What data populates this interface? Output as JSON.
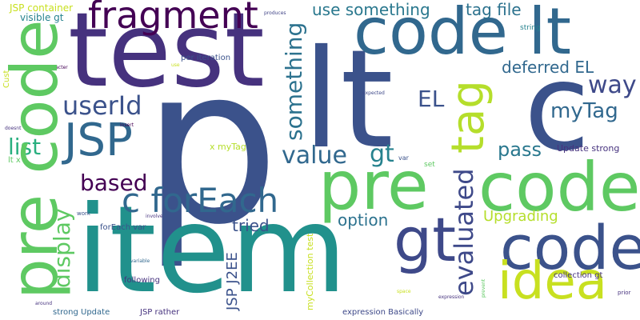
{
  "words": [
    {
      "text": "p",
      "color": "#3b528b"
    },
    {
      "text": "item",
      "color": "#21918c"
    },
    {
      "text": "test",
      "color": "#46327e"
    },
    {
      "text": "lt",
      "color": "#3b528b"
    },
    {
      "text": "c",
      "color": "#3b528b"
    },
    {
      "text": "code lt",
      "color": "#31688e"
    },
    {
      "text": "pre code",
      "color": "#5ec962"
    },
    {
      "text": "code",
      "color": "#3b528b"
    },
    {
      "text": "code",
      "color": "#5ec962"
    },
    {
      "text": "pre",
      "color": "#3b528b"
    },
    {
      "text": "fragment",
      "color": "#440154"
    },
    {
      "text": "JSP",
      "color": "#31688e"
    },
    {
      "text": "tag",
      "color": "#b5de2b"
    },
    {
      "text": "idea",
      "color": "#c8e020"
    },
    {
      "text": "gt",
      "color": "#3e4989"
    },
    {
      "text": "c forEach",
      "color": "#31688e"
    },
    {
      "text": "code",
      "color": "#7ad151"
    },
    {
      "text": "userId",
      "color": "#3b528b"
    },
    {
      "text": "evaluated",
      "color": "#3e4989"
    },
    {
      "text": "value",
      "color": "#31688e"
    },
    {
      "text": "gt",
      "color": "#26828e"
    },
    {
      "text": "something",
      "color": "#2c728e"
    },
    {
      "text": "display",
      "color": "#5ec962"
    },
    {
      "text": "based",
      "color": "#440154"
    },
    {
      "text": "list",
      "color": "#29af7f"
    },
    {
      "text": "use something",
      "color": "#2a788e"
    },
    {
      "text": "tag file",
      "color": "#2c728e"
    },
    {
      "text": "way",
      "color": "#3e4989"
    },
    {
      "text": "EL",
      "color": "#3b528b"
    },
    {
      "text": "myTag",
      "color": "#31688e"
    },
    {
      "text": "deferred EL",
      "color": "#31688e"
    },
    {
      "text": "pass",
      "color": "#2a788e"
    },
    {
      "text": "tried",
      "color": "#3b528b"
    },
    {
      "text": "option",
      "color": "#2c728e"
    },
    {
      "text": "Upgrading",
      "color": "#b5de2b"
    },
    {
      "text": "JSP J2EE",
      "color": "#3b528b"
    },
    {
      "text": "Update strong",
      "color": "#46327e"
    },
    {
      "text": "x myTag",
      "color": "#b5de2b"
    },
    {
      "text": "per iteration",
      "color": "#3b528b"
    },
    {
      "text": "JSP container",
      "color": "#c8e020"
    },
    {
      "text": "visible gt",
      "color": "#26828e"
    },
    {
      "text": "forEach var",
      "color": "#3b528b"
    },
    {
      "text": "following",
      "color": "#46327e"
    },
    {
      "text": "strong Update",
      "color": "#31688e"
    },
    {
      "text": "JSP rather",
      "color": "#46327e"
    },
    {
      "text": "expression Basically",
      "color": "#3e4989"
    },
    {
      "text": "collection gt",
      "color": "#46327e"
    },
    {
      "text": "myCollection test",
      "color": "#c8e020"
    },
    {
      "text": "string",
      "color": "#26828e"
    },
    {
      "text": "Cust",
      "color": "#c8e020"
    },
    {
      "text": "lt x",
      "color": "#5ec962"
    },
    {
      "text": "produces",
      "color": "#414487"
    },
    {
      "text": "character",
      "color": "#440154"
    },
    {
      "text": "use",
      "color": "#c8e020"
    },
    {
      "text": "expected",
      "color": "#3e4989"
    },
    {
      "text": "doesnt",
      "color": "#46327e"
    },
    {
      "text": "insert",
      "color": "#440154"
    },
    {
      "text": "var",
      "color": "#3b528b"
    },
    {
      "text": "set",
      "color": "#5ec962"
    },
    {
      "text": "work",
      "color": "#3b528b"
    },
    {
      "text": "involve",
      "color": "#46327e"
    },
    {
      "text": "variable",
      "color": "#31688e"
    },
    {
      "text": "around",
      "color": "#46327e"
    },
    {
      "text": "space",
      "color": "#c8e020"
    },
    {
      "text": "expression",
      "color": "#46327e"
    },
    {
      "text": "prevent",
      "color": "#5ec962"
    },
    {
      "text": "prior",
      "color": "#46327e"
    }
  ]
}
